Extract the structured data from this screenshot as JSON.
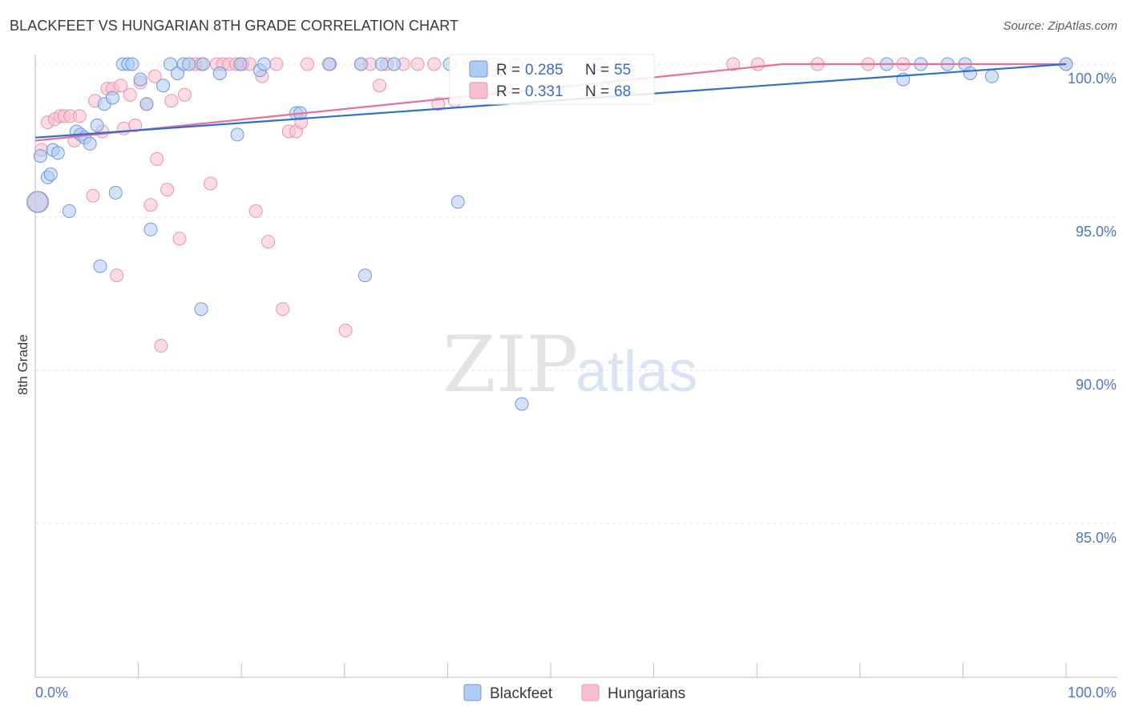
{
  "title": "BLACKFEET VS HUNGARIAN 8TH GRADE CORRELATION CHART",
  "source": "Source: ZipAtlas.com",
  "watermark": {
    "zip": "ZIP",
    "atlas": "atlas"
  },
  "colors": {
    "blackfeet_fill": "#aecbf2",
    "blackfeet_stroke": "#6e9ad8",
    "blackfeet_line": "#2f6fcb",
    "hungarian_fill": "#f8bfd0",
    "hungarian_stroke": "#ec92ae",
    "hungarian_line": "#e7709b",
    "tick_label": "#4a78c2",
    "grid": "#e4e6ea"
  },
  "legend_box": {
    "blackfeet": {
      "r_label": "R = ",
      "r_value": "0.285",
      "n_label": "N = ",
      "n_value": "55"
    },
    "hungarian": {
      "r_label": "R = ",
      "r_value": "0.331",
      "n_label": "N = ",
      "n_value": "68"
    }
  },
  "bottom_legend": {
    "blackfeet": "Blackfeet",
    "hungarian": "Hungarians"
  },
  "chart_data": {
    "type": "scatter",
    "title": "BLACKFEET VS HUNGARIAN 8TH GRADE CORRELATION CHART",
    "xlabel": "",
    "ylabel": "8th Grade",
    "xlim": [
      0,
      100
    ],
    "ylim": [
      80.5,
      100.8
    ],
    "x_tick_labels": [
      {
        "value": 0,
        "label": "0.0%"
      },
      {
        "value": 100,
        "label": "100.0%"
      }
    ],
    "y_tick_labels": [
      {
        "value": 100,
        "label": "100.0%"
      },
      {
        "value": 95,
        "label": "95.0%"
      },
      {
        "value": 90,
        "label": "90.0%"
      },
      {
        "value": 85,
        "label": "85.0%"
      }
    ],
    "grid": true,
    "legend": "top-center",
    "series": [
      {
        "name": "Blackfeet",
        "R": 0.285,
        "N": 55,
        "trend": {
          "x": [
            0,
            100
          ],
          "y": [
            97.6,
            100.0
          ]
        },
        "points": [
          [
            0.5,
            97.0
          ],
          [
            1.2,
            96.3
          ],
          [
            1.7,
            97.2
          ],
          [
            2.2,
            97.1
          ],
          [
            1.5,
            96.4
          ],
          [
            3.3,
            95.2
          ],
          [
            4.0,
            97.8
          ],
          [
            4.4,
            97.7
          ],
          [
            4.8,
            97.6
          ],
          [
            5.3,
            97.4
          ],
          [
            6.0,
            98.0
          ],
          [
            6.7,
            98.7
          ],
          [
            7.5,
            98.9
          ],
          [
            7.8,
            95.8
          ],
          [
            6.3,
            93.4
          ],
          [
            8.5,
            100.0
          ],
          [
            9.0,
            100.0
          ],
          [
            9.4,
            100.0
          ],
          [
            10.2,
            99.5
          ],
          [
            10.8,
            98.7
          ],
          [
            11.2,
            94.6
          ],
          [
            12.4,
            99.3
          ],
          [
            13.1,
            100.0
          ],
          [
            13.8,
            99.7
          ],
          [
            14.4,
            100.0
          ],
          [
            14.9,
            100.0
          ],
          [
            16.3,
            100.0
          ],
          [
            16.1,
            92.0
          ],
          [
            17.9,
            99.7
          ],
          [
            19.9,
            100.0
          ],
          [
            19.6,
            97.7
          ],
          [
            21.8,
            99.8
          ],
          [
            22.2,
            100.0
          ],
          [
            25.3,
            98.4
          ],
          [
            25.7,
            98.4
          ],
          [
            28.5,
            100.0
          ],
          [
            31.6,
            100.0
          ],
          [
            33.6,
            100.0
          ],
          [
            34.8,
            100.0
          ],
          [
            32.0,
            93.1
          ],
          [
            40.2,
            100.0
          ],
          [
            41.0,
            95.5
          ],
          [
            46.6,
            100.0
          ],
          [
            47.2,
            88.9
          ],
          [
            54.7,
            100.0
          ],
          [
            57.2,
            100.0
          ],
          [
            82.6,
            100.0
          ],
          [
            84.2,
            99.5
          ],
          [
            85.9,
            100.0
          ],
          [
            88.5,
            100.0
          ],
          [
            90.2,
            100.0
          ],
          [
            90.7,
            99.7
          ],
          [
            92.8,
            99.6
          ],
          [
            100.0,
            100.0
          ],
          [
            0.2,
            95.5
          ]
        ]
      },
      {
        "name": "Hungarians",
        "R": 0.331,
        "N": 68,
        "trend": {
          "x": [
            0,
            72.5,
            100
          ],
          "y": [
            97.5,
            100.0,
            100.0
          ]
        },
        "points": [
          [
            0.3,
            95.5
          ],
          [
            0.6,
            97.2
          ],
          [
            1.2,
            98.1
          ],
          [
            1.9,
            98.2
          ],
          [
            2.4,
            98.3
          ],
          [
            2.8,
            98.3
          ],
          [
            3.4,
            98.3
          ],
          [
            3.8,
            97.5
          ],
          [
            4.3,
            98.3
          ],
          [
            5.6,
            95.7
          ],
          [
            5.8,
            98.8
          ],
          [
            6.5,
            97.8
          ],
          [
            7.0,
            99.2
          ],
          [
            7.5,
            99.2
          ],
          [
            8.3,
            99.3
          ],
          [
            8.6,
            97.9
          ],
          [
            9.2,
            99.0
          ],
          [
            9.7,
            98.0
          ],
          [
            10.2,
            99.4
          ],
          [
            10.8,
            98.7
          ],
          [
            11.2,
            95.4
          ],
          [
            11.6,
            99.6
          ],
          [
            11.8,
            96.9
          ],
          [
            12.2,
            90.8
          ],
          [
            12.8,
            95.9
          ],
          [
            13.2,
            98.8
          ],
          [
            14.0,
            94.3
          ],
          [
            14.5,
            99.0
          ],
          [
            15.5,
            100.0
          ],
          [
            16.1,
            100.0
          ],
          [
            17.0,
            96.1
          ],
          [
            17.6,
            100.0
          ],
          [
            18.2,
            100.0
          ],
          [
            18.8,
            100.0
          ],
          [
            19.5,
            100.0
          ],
          [
            20.1,
            100.0
          ],
          [
            20.8,
            100.0
          ],
          [
            21.4,
            95.2
          ],
          [
            22.0,
            99.6
          ],
          [
            22.6,
            94.2
          ],
          [
            23.4,
            100.0
          ],
          [
            24.0,
            92.0
          ],
          [
            24.6,
            97.8
          ],
          [
            25.3,
            97.8
          ],
          [
            25.8,
            98.1
          ],
          [
            26.4,
            100.0
          ],
          [
            28.6,
            100.0
          ],
          [
            31.6,
            100.0
          ],
          [
            30.1,
            91.3
          ],
          [
            32.5,
            100.0
          ],
          [
            33.4,
            99.3
          ],
          [
            34.1,
            100.0
          ],
          [
            35.7,
            100.0
          ],
          [
            37.1,
            100.0
          ],
          [
            38.7,
            100.0
          ],
          [
            40.7,
            98.8
          ],
          [
            39.1,
            98.7
          ],
          [
            42.3,
            100.0
          ],
          [
            44.4,
            100.0
          ],
          [
            47.9,
            100.0
          ],
          [
            50.7,
            100.0
          ],
          [
            67.7,
            100.0
          ],
          [
            70.1,
            100.0
          ],
          [
            75.9,
            100.0
          ],
          [
            80.8,
            100.0
          ],
          [
            84.2,
            100.0
          ],
          [
            100.0,
            100.0
          ],
          [
            7.9,
            93.1
          ]
        ]
      }
    ]
  }
}
